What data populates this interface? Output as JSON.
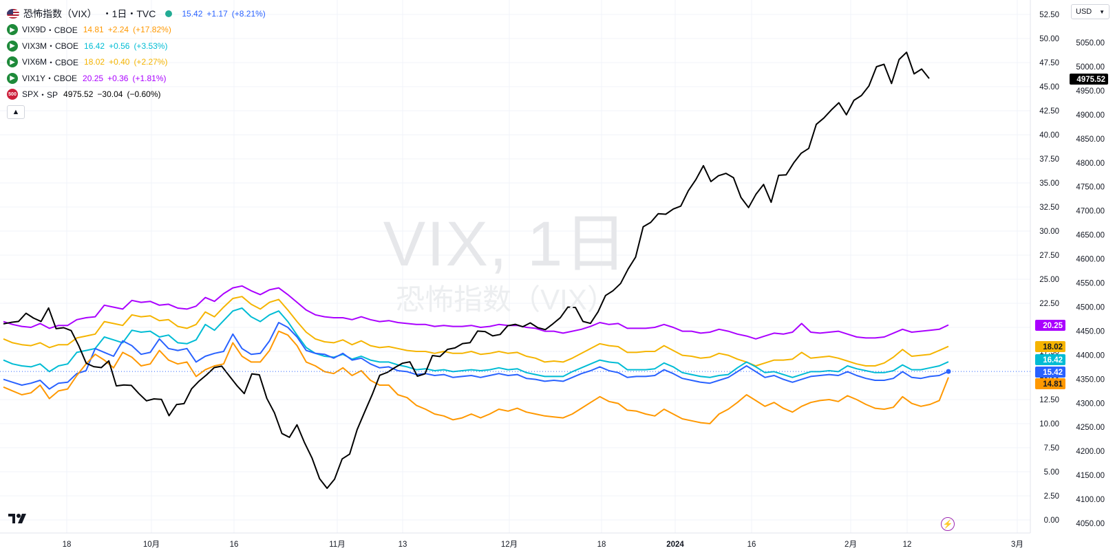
{
  "legend": {
    "main": {
      "name": "恐怖指数（VIX）",
      "interval": "・1日・TVC",
      "price": "15.42",
      "change": "+1.17",
      "change_pct": "(+8.21%)",
      "color": "#2962ff",
      "icon": "us-flag-icon"
    },
    "compare": [
      {
        "symbol": "VIX9D",
        "exchange": "・CBOE",
        "price": "14.81",
        "change": "+2.24",
        "change_pct": "(+17.82%)",
        "color": "#ff9800",
        "icon": "cboe-icon"
      },
      {
        "symbol": "VIX3M",
        "exchange": "・CBOE",
        "price": "16.42",
        "change": "+0.56",
        "change_pct": "(+3.53%)",
        "color": "#00bcd4",
        "icon": "cboe-icon"
      },
      {
        "symbol": "VIX6M",
        "exchange": "・CBOE",
        "price": "18.02",
        "change": "+0.40",
        "change_pct": "(+2.27%)",
        "color": "#f5b400",
        "icon": "cboe-icon"
      },
      {
        "symbol": "VIX1Y",
        "exchange": "・CBOE",
        "price": "20.25",
        "change": "+0.36",
        "change_pct": "(+1.81%)",
        "color": "#aa00ff",
        "icon": "cboe-icon"
      },
      {
        "symbol": "SPX",
        "exchange": "・SP",
        "price": "4975.52",
        "change": "−30.04",
        "change_pct": "(−0.60%)",
        "color": "#000000",
        "icon": "sp500-icon",
        "icon_text": "500"
      }
    ],
    "collapse_icon": "chevron-up-icon"
  },
  "watermark": {
    "main": "VIX, 1日",
    "sub": "恐怖指数（VIX）"
  },
  "currency": {
    "label": "USD"
  },
  "chart_data": {
    "type": "line",
    "x_ticks": [
      "18",
      "10月",
      "16",
      "11月",
      "13",
      "12月",
      "18",
      "2024",
      "16",
      "2月",
      "12",
      "3月"
    ],
    "vix_axis": {
      "ticks": [
        "0.00",
        "2.50",
        "5.00",
        "7.50",
        "10.00",
        "12.50",
        "15.00",
        "17.50",
        "20.00",
        "22.50",
        "25.00",
        "27.50",
        "30.00",
        "32.50",
        "35.00",
        "37.50",
        "40.00",
        "42.50",
        "45.00",
        "47.50",
        "50.00",
        "52.50"
      ],
      "ylim": [
        0,
        52.5
      ]
    },
    "spx_axis": {
      "ticks": [
        "4050.00",
        "4100.00",
        "4150.00",
        "4200.00",
        "4250.00",
        "4300.00",
        "4350.00",
        "4400.00",
        "4450.00",
        "4500.00",
        "4550.00",
        "4600.00",
        "4650.00",
        "4700.00",
        "4750.00",
        "4800.00",
        "4850.00",
        "4900.00",
        "4950.00",
        "5000.00",
        "5050.00"
      ],
      "ylim": [
        4040,
        5090
      ]
    },
    "series": [
      {
        "name": "VIX1Y",
        "axis": "vix",
        "color": "#aa00ff",
        "last_label": "20.25",
        "values": [
          20.6,
          20.3,
          20.1,
          20.0,
          20.4,
          19.9,
          20.2,
          20.2,
          20.8,
          21.0,
          21.1,
          22.3,
          22.1,
          21.9,
          22.8,
          22.6,
          22.7,
          22.3,
          22.4,
          22.0,
          21.9,
          22.2,
          23.1,
          22.7,
          23.5,
          24.1,
          24.3,
          23.8,
          23.4,
          23.9,
          24.1,
          23.4,
          22.6,
          21.8,
          21.3,
          21.1,
          21.0,
          21.0,
          20.8,
          21.1,
          20.8,
          20.6,
          20.7,
          20.5,
          20.4,
          20.3,
          20.3,
          20.1,
          20.2,
          20.1,
          20.1,
          20.2,
          20.0,
          20.1,
          20.3,
          20.2,
          20.2,
          20.0,
          19.9,
          19.6,
          19.6,
          19.4,
          19.6,
          19.8,
          20.1,
          20.5,
          20.3,
          20.4,
          19.9,
          19.9,
          19.9,
          20.0,
          20.3,
          20.0,
          19.6,
          19.6,
          19.4,
          19.5,
          19.8,
          19.6,
          19.3,
          19.1,
          18.8,
          19.1,
          19.4,
          19.3,
          19.5,
          20.4,
          19.5,
          19.4,
          19.5,
          19.6,
          19.3,
          19.0,
          18.9,
          18.9,
          19.0,
          19.4,
          19.8,
          19.5,
          19.6,
          19.7,
          19.8,
          20.25
        ]
      },
      {
        "name": "VIX6M",
        "axis": "vix",
        "color": "#f5b400",
        "last_label": "18.02",
        "values": [
          18.8,
          18.4,
          18.2,
          18.1,
          18.4,
          17.9,
          18.2,
          18.2,
          18.9,
          19.1,
          19.3,
          20.6,
          20.4,
          20.2,
          21.3,
          21.1,
          21.2,
          20.7,
          20.8,
          20.1,
          19.9,
          20.3,
          21.6,
          21.1,
          22.1,
          23.0,
          23.2,
          22.4,
          21.9,
          22.6,
          22.9,
          21.8,
          20.6,
          19.5,
          18.8,
          18.5,
          18.4,
          18.7,
          18.2,
          18.6,
          18.1,
          17.9,
          18.0,
          17.8,
          17.6,
          17.5,
          17.5,
          17.3,
          17.5,
          17.3,
          17.3,
          17.5,
          17.2,
          17.3,
          17.5,
          17.3,
          17.4,
          17.0,
          16.8,
          16.4,
          16.5,
          16.4,
          16.8,
          17.3,
          17.8,
          18.3,
          18.1,
          18.0,
          17.4,
          17.4,
          17.5,
          17.5,
          18.1,
          17.6,
          17.1,
          17.0,
          16.8,
          16.9,
          17.3,
          17.1,
          16.7,
          16.4,
          16.0,
          16.3,
          16.6,
          16.6,
          16.7,
          17.4,
          16.8,
          16.9,
          17.0,
          16.8,
          16.5,
          16.2,
          16.0,
          16.0,
          16.3,
          16.9,
          17.7,
          17.0,
          17.1,
          17.2,
          17.6,
          18.02
        ]
      },
      {
        "name": "VIX3M",
        "axis": "vix",
        "color": "#00bcd4",
        "last_label": "16.42",
        "values": [
          16.6,
          16.2,
          16.0,
          15.9,
          16.2,
          15.4,
          16.0,
          16.2,
          17.4,
          17.6,
          17.8,
          19.0,
          18.7,
          18.4,
          19.7,
          19.5,
          19.6,
          19.0,
          19.2,
          18.4,
          18.3,
          18.7,
          20.3,
          19.7,
          20.7,
          21.7,
          22.0,
          21.1,
          20.6,
          21.3,
          21.7,
          20.6,
          19.2,
          17.9,
          17.3,
          17.0,
          16.9,
          17.2,
          16.7,
          17.0,
          16.6,
          16.4,
          16.4,
          16.1,
          15.9,
          15.6,
          15.7,
          15.5,
          15.6,
          15.4,
          15.5,
          15.6,
          15.5,
          15.6,
          15.8,
          15.6,
          15.7,
          15.3,
          15.1,
          14.9,
          14.9,
          14.9,
          15.4,
          15.8,
          16.2,
          16.6,
          16.4,
          16.3,
          15.6,
          15.6,
          15.6,
          15.7,
          16.3,
          15.9,
          15.3,
          15.1,
          14.9,
          14.8,
          15.0,
          15.1,
          15.8,
          16.4,
          15.9,
          15.3,
          15.4,
          15.1,
          14.8,
          15.1,
          15.4,
          15.4,
          15.5,
          15.4,
          16.0,
          15.7,
          15.5,
          15.3,
          15.3,
          15.5,
          16.1,
          15.6,
          15.6,
          15.8,
          16.0,
          16.42
        ]
      },
      {
        "name": "VIX",
        "axis": "vix",
        "color": "#2962ff",
        "last_label": "15.42",
        "values": [
          14.6,
          14.3,
          14.0,
          14.2,
          14.5,
          13.6,
          14.2,
          14.3,
          15.2,
          15.5,
          17.8,
          17.4,
          17.0,
          18.6,
          18.1,
          17.2,
          17.4,
          18.8,
          17.8,
          17.6,
          17.8,
          16.4,
          17.0,
          17.3,
          17.5,
          19.3,
          17.8,
          17.2,
          17.3,
          18.6,
          20.5,
          20.0,
          19.0,
          17.6,
          17.3,
          17.2,
          16.8,
          17.3,
          16.6,
          16.8,
          16.2,
          15.8,
          15.9,
          15.5,
          15.4,
          15.1,
          15.2,
          15.0,
          15.1,
          14.8,
          14.9,
          15.0,
          14.8,
          15.0,
          15.2,
          15.0,
          15.1,
          14.7,
          14.6,
          14.4,
          14.5,
          14.4,
          14.8,
          15.2,
          15.5,
          15.9,
          15.5,
          15.3,
          14.8,
          14.9,
          14.9,
          15.0,
          15.6,
          15.2,
          14.7,
          14.5,
          14.3,
          14.2,
          14.5,
          14.8,
          15.4,
          16.0,
          15.4,
          14.8,
          15.0,
          14.6,
          14.3,
          14.6,
          14.9,
          15.0,
          15.1,
          15.0,
          15.4,
          15.0,
          14.7,
          14.5,
          14.5,
          14.7,
          15.4,
          14.8,
          14.7,
          14.9,
          15.0,
          15.42
        ]
      },
      {
        "name": "VIX9D",
        "axis": "vix",
        "color": "#ff9800",
        "last_label": "14.81",
        "values": [
          13.8,
          13.4,
          13.0,
          13.2,
          14.0,
          12.6,
          13.4,
          13.6,
          15.0,
          16.2,
          17.2,
          16.6,
          15.8,
          17.4,
          16.9,
          16.0,
          16.2,
          17.6,
          16.6,
          16.2,
          16.4,
          14.9,
          15.6,
          16.0,
          16.2,
          18.4,
          17.0,
          16.4,
          16.4,
          17.6,
          19.6,
          19.2,
          18.1,
          16.4,
          16.0,
          15.4,
          15.2,
          15.8,
          15.0,
          15.5,
          14.5,
          14.0,
          14.0,
          13.0,
          12.7,
          11.9,
          11.5,
          11.0,
          10.8,
          10.4,
          10.6,
          11.0,
          10.6,
          11.0,
          11.5,
          11.3,
          11.6,
          11.2,
          11.0,
          10.8,
          10.7,
          10.6,
          11.0,
          11.6,
          12.2,
          12.8,
          12.3,
          12.1,
          11.4,
          11.3,
          11.0,
          10.8,
          11.5,
          11.0,
          10.5,
          10.3,
          10.1,
          10.0,
          11.0,
          11.5,
          12.2,
          13.0,
          12.4,
          11.8,
          12.2,
          11.6,
          11.2,
          11.8,
          12.2,
          12.4,
          12.5,
          12.3,
          12.9,
          12.5,
          12.0,
          11.6,
          11.5,
          11.7,
          12.8,
          12.1,
          11.8,
          12.0,
          12.4,
          14.81
        ]
      },
      {
        "name": "SPX",
        "axis": "spx",
        "color": "#000000",
        "last_label": "4975.52",
        "values": [
          4465,
          4468,
          4470,
          4487,
          4477,
          4470,
          4498,
          4455,
          4457,
          4451,
          4420,
          4383,
          4376,
          4374,
          4388,
          4336,
          4338,
          4337,
          4320,
          4305,
          4309,
          4308,
          4274,
          4297,
          4299,
          4330,
          4346,
          4359,
          4374,
          4377,
          4357,
          4337,
          4320,
          4361,
          4359,
          4310,
          4280,
          4237,
          4229,
          4255,
          4218,
          4186,
          4143,
          4123,
          4142,
          4184,
          4194,
          4245,
          4282,
          4318,
          4358,
          4364,
          4374,
          4383,
          4386,
          4356,
          4361,
          4399,
          4397,
          4412,
          4415,
          4424,
          4426,
          4450,
          4449,
          4440,
          4443,
          4461,
          4464,
          4459,
          4467,
          4457,
          4453,
          4465,
          4478,
          4500,
          4499,
          4470,
          4466,
          4490,
          4524,
          4534,
          4549,
          4579,
          4604,
          4667,
          4676,
          4694,
          4693,
          4704,
          4710,
          4742,
          4765,
          4794,
          4761,
          4773,
          4778,
          4769,
          4728,
          4707,
          4735,
          4755,
          4718,
          4774,
          4775,
          4800,
          4820,
          4830,
          4880,
          4893,
          4910,
          4925,
          4900,
          4930,
          4940,
          4960,
          5000,
          5005,
          4965,
          5015,
          5030,
          4985,
          4995,
          4975.52
        ]
      }
    ]
  }
}
